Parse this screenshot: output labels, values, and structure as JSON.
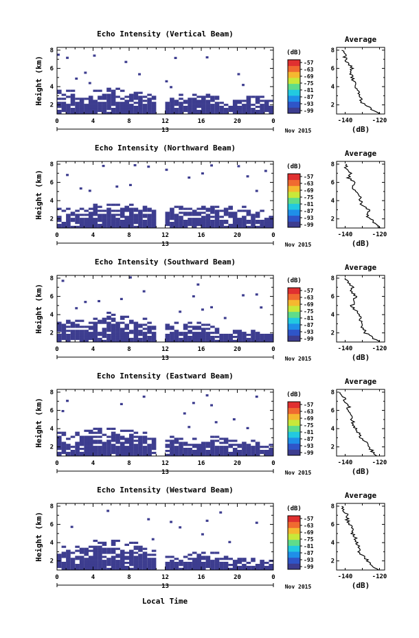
{
  "figure": {
    "xlabel": "Local Time",
    "date_label": "Nov 2015",
    "day_label": "13",
    "unit_label": "(dB)",
    "avg_title": "Average",
    "avg_xlabel": "(dB)",
    "avg_xticks": [
      "-140",
      "-120"
    ],
    "colorbar_ticks": [
      "-57",
      "-63",
      "-69",
      "-75",
      "-81",
      "-87",
      "-93",
      "-99"
    ],
    "colorbar_colors": [
      "#3d3d8f",
      "#2f55c8",
      "#1f8fe8",
      "#22c9e0",
      "#5fdc8a",
      "#c8e83a",
      "#f5b830",
      "#f06a30",
      "#e03030"
    ]
  },
  "chart_data": [
    {
      "type": "heatmap",
      "title": "Echo Intensity (Vertical Beam)",
      "ylabel": "Height (km)",
      "xticks": [
        "0",
        "4",
        "8",
        "12",
        "16",
        "20",
        "0"
      ],
      "yticks": [
        "2",
        "4",
        "6",
        "8"
      ],
      "xlim": [
        0,
        24
      ],
      "ylim": [
        1,
        8.3
      ],
      "echo_top_km": [
        3.6,
        3.6,
        3.2,
        3.2,
        3.6,
        3.8,
        3.8,
        3.6,
        3.4,
        3.3,
        3.0,
        0.0,
        2.6,
        3.2,
        3.2,
        3.0,
        3.0,
        2.8,
        2.6,
        2.4,
        2.6,
        2.8,
        2.9,
        2.7
      ],
      "average_profile": {
        "height_km": [
          1.0,
          1.5,
          2.0,
          2.5,
          3.0,
          3.5,
          4.0,
          4.5,
          5.0,
          5.5,
          6.0,
          6.5,
          7.0,
          7.5,
          8.0
        ],
        "intensity_db": [
          -119,
          -124,
          -129,
          -131,
          -131,
          -133,
          -134,
          -135,
          -136,
          -137,
          -136,
          -138,
          -140,
          -140,
          -142
        ]
      }
    },
    {
      "type": "heatmap",
      "title": "Echo Intensity (Northward Beam)",
      "ylabel": "Height (km)",
      "xticks": [
        "0",
        "4",
        "8",
        "12",
        "16",
        "20",
        "0"
      ],
      "yticks": [
        "2",
        "4",
        "6",
        "8"
      ],
      "xlim": [
        0,
        24
      ],
      "ylim": [
        1,
        8.3
      ],
      "echo_top_km": [
        3.2,
        3.0,
        3.0,
        3.2,
        3.6,
        3.8,
        3.6,
        3.4,
        3.5,
        3.3,
        3.1,
        0.0,
        3.2,
        3.4,
        3.1,
        3.2,
        3.3,
        3.5,
        3.4,
        3.3,
        3.5,
        3.2,
        2.9,
        2.5
      ],
      "average_profile": {
        "height_km": [
          1.0,
          1.5,
          2.0,
          2.5,
          3.0,
          3.5,
          4.0,
          4.5,
          5.0,
          5.5,
          6.0,
          6.5,
          7.0,
          7.5,
          8.0
        ],
        "intensity_db": [
          -119,
          -123,
          -125,
          -128,
          -126,
          -130,
          -131,
          -132,
          -134,
          -136,
          -135,
          -138,
          -137,
          -140,
          -139
        ]
      }
    },
    {
      "type": "heatmap",
      "title": "Echo Intensity (Southward Beam)",
      "ylabel": "Height (km)",
      "xticks": [
        "0",
        "4",
        "8",
        "12",
        "16",
        "20",
        "0"
      ],
      "yticks": [
        "2",
        "4",
        "6",
        "8"
      ],
      "xlim": [
        0,
        24
      ],
      "ylim": [
        1,
        8.3
      ],
      "echo_top_km": [
        3.4,
        3.4,
        3.3,
        3.6,
        3.8,
        4.1,
        4.0,
        3.8,
        3.6,
        3.5,
        3.2,
        0.0,
        3.0,
        3.2,
        3.1,
        3.1,
        2.8,
        2.6,
        2.4,
        2.2,
        2.3,
        2.2,
        2.1,
        2.0
      ],
      "average_profile": {
        "height_km": [
          1.0,
          1.5,
          2.0,
          2.5,
          3.0,
          3.5,
          4.0,
          4.5,
          5.0,
          5.5,
          6.0,
          6.5,
          7.0,
          7.5,
          8.0
        ],
        "intensity_db": [
          -120,
          -124,
          -128,
          -130,
          -131,
          -131,
          -132,
          -134,
          -136,
          -135,
          -134,
          -136,
          -136,
          -138,
          -140
        ]
      }
    },
    {
      "type": "heatmap",
      "title": "Echo Intensity (Eastward Beam)",
      "ylabel": "Height (km)",
      "xticks": [
        "0",
        "4",
        "8",
        "12",
        "16",
        "20",
        "0"
      ],
      "yticks": [
        "2",
        "4",
        "6",
        "8"
      ],
      "xlim": [
        0,
        24
      ],
      "ylim": [
        1,
        8.3
      ],
      "echo_top_km": [
        3.6,
        3.4,
        3.5,
        3.7,
        3.9,
        4.0,
        4.0,
        3.8,
        3.7,
        3.5,
        3.2,
        0.0,
        3.1,
        2.8,
        2.7,
        2.8,
        3.0,
        3.2,
        3.0,
        2.6,
        2.7,
        2.6,
        2.5,
        2.2
      ],
      "average_profile": {
        "height_km": [
          1.0,
          1.5,
          2.0,
          2.5,
          3.0,
          3.5,
          4.0,
          4.5,
          5.0,
          5.5,
          6.0,
          6.5,
          7.0,
          7.5,
          8.0
        ],
        "intensity_db": [
          -121,
          -124,
          -127,
          -128,
          -131,
          -132,
          -134,
          -135,
          -136,
          -137,
          -138,
          -138,
          -140,
          -141,
          -143
        ]
      }
    },
    {
      "type": "heatmap",
      "title": "Echo Intensity (Westward Beam)",
      "ylabel": "Height (km)",
      "xticks": [
        "0",
        "4",
        "8",
        "12",
        "16",
        "20",
        "0"
      ],
      "yticks": [
        "2",
        "4",
        "6",
        "8"
      ],
      "xlim": [
        0,
        24
      ],
      "ylim": [
        1,
        8.3
      ],
      "echo_top_km": [
        3.6,
        3.4,
        3.5,
        3.8,
        4.1,
        4.2,
        4.1,
        4.0,
        3.9,
        3.6,
        3.2,
        0.0,
        2.4,
        2.8,
        2.6,
        2.9,
        3.0,
        2.9,
        2.6,
        2.2,
        2.3,
        2.2,
        2.0,
        1.9
      ],
      "average_profile": {
        "height_km": [
          1.0,
          1.5,
          2.0,
          2.5,
          3.0,
          3.5,
          4.0,
          4.5,
          5.0,
          5.5,
          6.0,
          6.5,
          7.0,
          7.5,
          8.0
        ],
        "intensity_db": [
          -120,
          -124,
          -127,
          -129,
          -132,
          -132,
          -133,
          -134,
          -136,
          -135,
          -137,
          -139,
          -138,
          -141,
          -142
        ]
      }
    }
  ]
}
